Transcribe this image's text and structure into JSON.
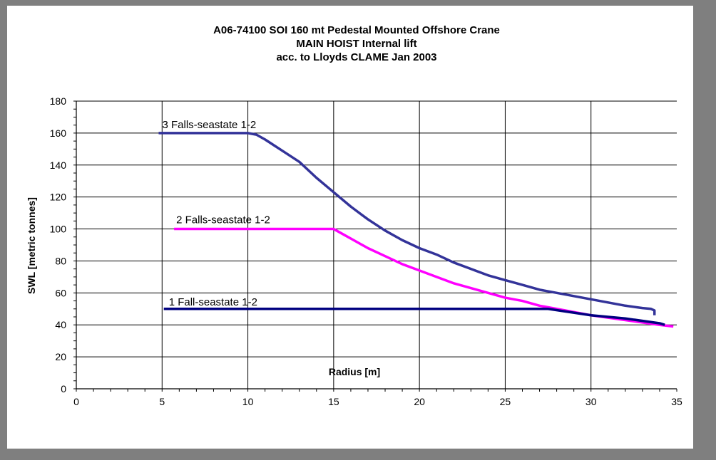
{
  "chart_data": {
    "type": "line",
    "title": [
      "A06-74100 SOI 160 mt Pedestal Mounted Offshore Crane",
      "MAIN HOIST Internal lift",
      "acc. to Lloyds CLAME Jan 2003"
    ],
    "xlabel": "Radius [m]",
    "ylabel": "SWL [metric tonnes]",
    "xlim": [
      0,
      35
    ],
    "ylim": [
      0,
      180
    ],
    "x_ticks": [
      "0",
      "5",
      "10",
      "15",
      "20",
      "25",
      "30",
      "35"
    ],
    "y_ticks": [
      "0",
      "20",
      "40",
      "60",
      "80",
      "100",
      "120",
      "140",
      "160",
      "180"
    ],
    "grid": true,
    "legend": "none",
    "series": [
      {
        "name": "3 Falls-seastate 1-2",
        "color": "#333399",
        "x": [
          4.8,
          10.0,
          10.5,
          11,
          12,
          13,
          13.3,
          14,
          15,
          16,
          17,
          18,
          19,
          20,
          21,
          22,
          23,
          24,
          25,
          26,
          27,
          28,
          29,
          30,
          31,
          32,
          33,
          33.5,
          33.7,
          33.7
        ],
        "y": [
          160,
          160,
          159,
          156,
          149,
          142,
          139,
          132,
          123,
          114,
          106,
          99,
          93,
          88,
          84,
          79,
          75,
          71,
          68,
          65,
          62,
          60,
          58,
          56,
          54,
          52,
          50.5,
          50,
          49,
          46
        ]
      },
      {
        "name": "2 Falls-seastate 1-2",
        "color": "#ff00ff",
        "x": [
          5.7,
          15.0,
          15.5,
          16,
          17,
          18,
          19,
          20,
          21,
          22,
          23,
          24,
          25,
          26,
          27,
          28,
          29,
          30,
          31,
          32,
          33,
          34,
          34.8
        ],
        "y": [
          100,
          100,
          97,
          94,
          88,
          83,
          78,
          74,
          70,
          66,
          63,
          60,
          57,
          55,
          52,
          50,
          48,
          46,
          44.5,
          43,
          41.5,
          40,
          39
        ]
      },
      {
        "name": "1 Fall-seastate 1-2",
        "color": "#000080",
        "x": [
          5.1,
          27.5,
          30,
          32,
          34,
          34.3
        ],
        "y": [
          50,
          50,
          46,
          44,
          41,
          40
        ]
      }
    ]
  }
}
